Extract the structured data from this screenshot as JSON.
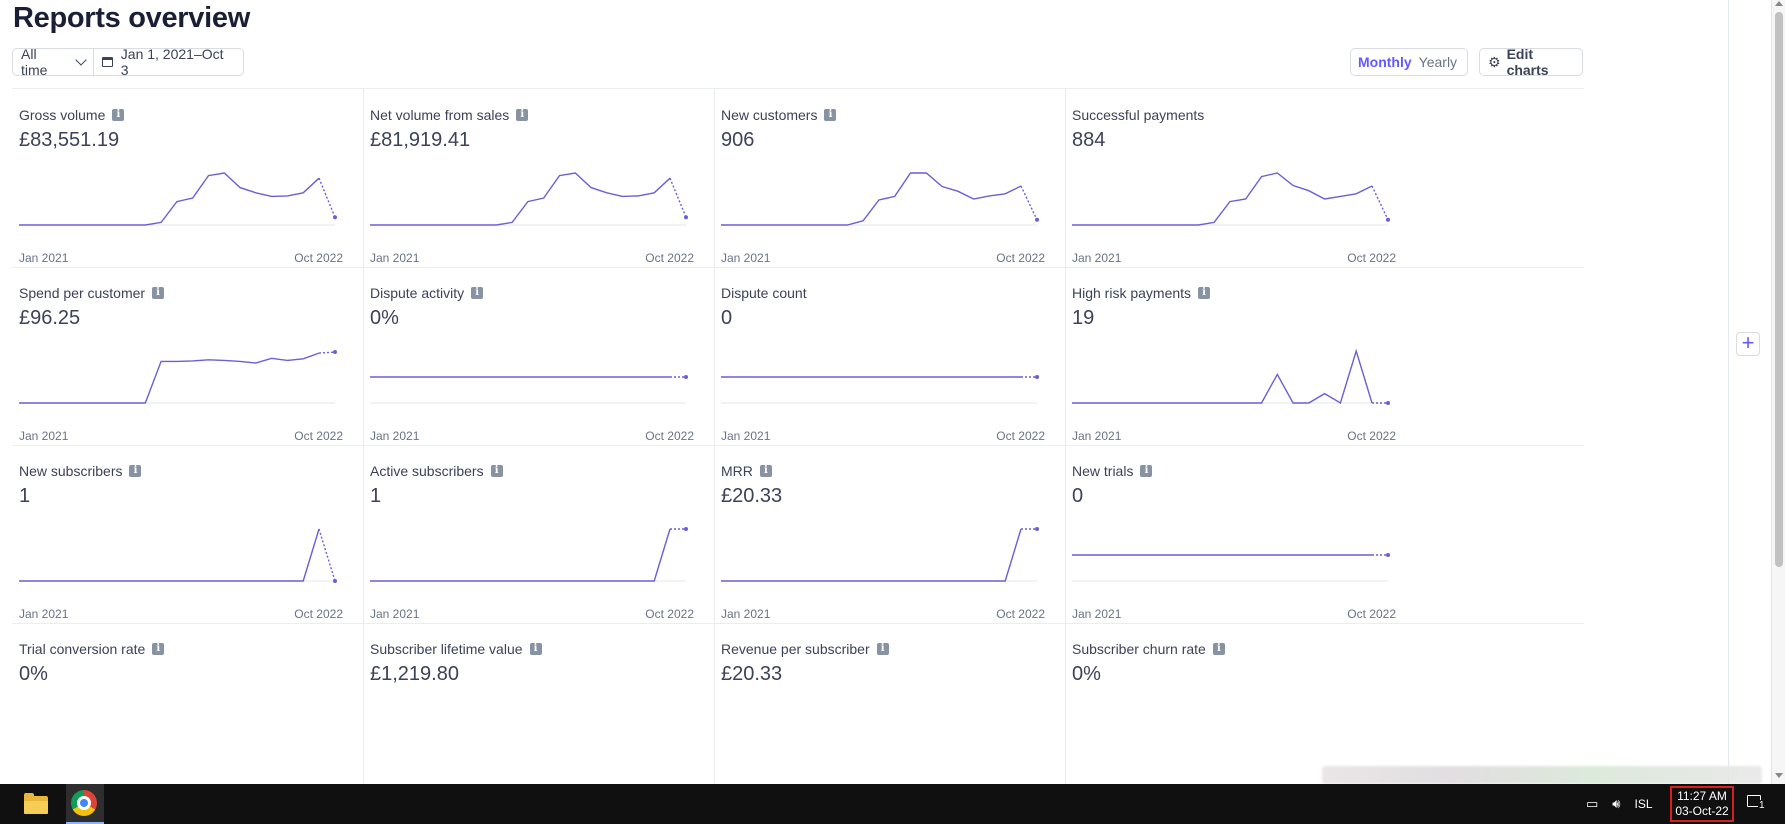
{
  "page": {
    "title": "Reports overview"
  },
  "toolbar": {
    "range_label": "All time",
    "date_range": "Jan 1, 2021–Oct 3",
    "monthly": "Monthly",
    "yearly": "Yearly",
    "edit_charts": "Edit charts"
  },
  "colors": {
    "accent": "#635bff",
    "line": "#6b5fd6",
    "grid": "#ebeef1"
  },
  "charts": [
    {
      "label": "Gross volume",
      "value": "£83,551.19",
      "info": true,
      "start": "Jan 2021",
      "end": "Oct 2022",
      "series": [
        0,
        0,
        0,
        0,
        0,
        0,
        0,
        0,
        0,
        0.05,
        0.45,
        0.52,
        0.95,
        1,
        0.72,
        0.62,
        0.55,
        0.56,
        0.62,
        0.9
      ],
      "last": 0.15
    },
    {
      "label": "Net volume from sales",
      "value": "£81,919.41",
      "info": true,
      "start": "Jan 2021",
      "end": "Oct 2022",
      "series": [
        0,
        0,
        0,
        0,
        0,
        0,
        0,
        0,
        0,
        0.05,
        0.45,
        0.52,
        0.95,
        1,
        0.72,
        0.62,
        0.55,
        0.56,
        0.62,
        0.9
      ],
      "last": 0.15
    },
    {
      "label": "New customers",
      "value": "906",
      "info": true,
      "start": "Jan 2021",
      "end": "Oct 2022",
      "series": [
        0,
        0,
        0,
        0,
        0,
        0,
        0,
        0,
        0,
        0.08,
        0.48,
        0.55,
        1,
        1,
        0.74,
        0.65,
        0.5,
        0.56,
        0.6,
        0.75
      ],
      "last": 0.1
    },
    {
      "label": "Successful payments",
      "value": "884",
      "info": false,
      "start": "Jan 2021",
      "end": "Oct 2022",
      "series": [
        0,
        0,
        0,
        0,
        0,
        0,
        0,
        0,
        0,
        0.05,
        0.45,
        0.5,
        0.93,
        1,
        0.76,
        0.66,
        0.5,
        0.55,
        0.6,
        0.75
      ],
      "last": 0.1
    },
    {
      "label": "Spend per customer",
      "value": "£96.25",
      "info": true,
      "start": "Jan 2021",
      "end": "Oct 2022",
      "series": [
        0,
        0,
        0,
        0,
        0,
        0,
        0,
        0,
        0,
        0.8,
        0.8,
        0.81,
        0.83,
        0.82,
        0.8,
        0.77,
        0.86,
        0.82,
        0.85,
        0.96
      ],
      "last": 0.98
    },
    {
      "label": "Dispute activity",
      "value": "0%",
      "info": true,
      "start": "Jan 2021",
      "end": "Oct 2022",
      "series": [
        0.5,
        0.5,
        0.5,
        0.5,
        0.5,
        0.5,
        0.5,
        0.5,
        0.5,
        0.5,
        0.5,
        0.5,
        0.5,
        0.5,
        0.5,
        0.5,
        0.5,
        0.5,
        0.5,
        0.5
      ],
      "last": 0.5
    },
    {
      "label": "Dispute count",
      "value": "0",
      "info": false,
      "start": "Jan 2021",
      "end": "Oct 2022",
      "series": [
        0.5,
        0.5,
        0.5,
        0.5,
        0.5,
        0.5,
        0.5,
        0.5,
        0.5,
        0.5,
        0.5,
        0.5,
        0.5,
        0.5,
        0.5,
        0.5,
        0.5,
        0.5,
        0.5,
        0.5
      ],
      "last": 0.5
    },
    {
      "label": "High risk payments",
      "value": "19",
      "info": true,
      "start": "Jan 2021",
      "end": "Oct 2022",
      "series": [
        0,
        0,
        0,
        0,
        0,
        0,
        0,
        0,
        0,
        0,
        0,
        0,
        0,
        0.55,
        0,
        0,
        0.18,
        0,
        1,
        0
      ],
      "last": 0
    },
    {
      "label": "New subscribers",
      "value": "1",
      "info": true,
      "start": "Jan 2021",
      "end": "Oct 2022",
      "series": [
        0,
        0,
        0,
        0,
        0,
        0,
        0,
        0,
        0,
        0,
        0,
        0,
        0,
        0,
        0,
        0,
        0,
        0,
        0,
        1
      ],
      "last": 0
    },
    {
      "label": "Active subscribers",
      "value": "1",
      "info": true,
      "start": "Jan 2021",
      "end": "Oct 2022",
      "series": [
        0,
        0,
        0,
        0,
        0,
        0,
        0,
        0,
        0,
        0,
        0,
        0,
        0,
        0,
        0,
        0,
        0,
        0,
        0,
        1
      ],
      "last": 1
    },
    {
      "label": "MRR",
      "value": "£20.33",
      "info": true,
      "start": "Jan 2021",
      "end": "Oct 2022",
      "series": [
        0,
        0,
        0,
        0,
        0,
        0,
        0,
        0,
        0,
        0,
        0,
        0,
        0,
        0,
        0,
        0,
        0,
        0,
        0,
        1
      ],
      "last": 1
    },
    {
      "label": "New trials",
      "value": "0",
      "info": true,
      "start": "Jan 2021",
      "end": "Oct 2022",
      "series": [
        0.5,
        0.5,
        0.5,
        0.5,
        0.5,
        0.5,
        0.5,
        0.5,
        0.5,
        0.5,
        0.5,
        0.5,
        0.5,
        0.5,
        0.5,
        0.5,
        0.5,
        0.5,
        0.5,
        0.5
      ],
      "last": 0.5
    },
    {
      "label": "Trial conversion rate",
      "value": "0%",
      "info": true
    },
    {
      "label": "Subscriber lifetime value",
      "value": "£1,219.80",
      "info": true
    },
    {
      "label": "Revenue per subscriber",
      "value": "£20.33",
      "info": true
    },
    {
      "label": "Subscriber churn rate",
      "value": "0%",
      "info": true
    }
  ],
  "taskbar": {
    "language": "ISL",
    "time": "11:27 AM",
    "date": "03-Oct-22",
    "notifications": "1"
  }
}
